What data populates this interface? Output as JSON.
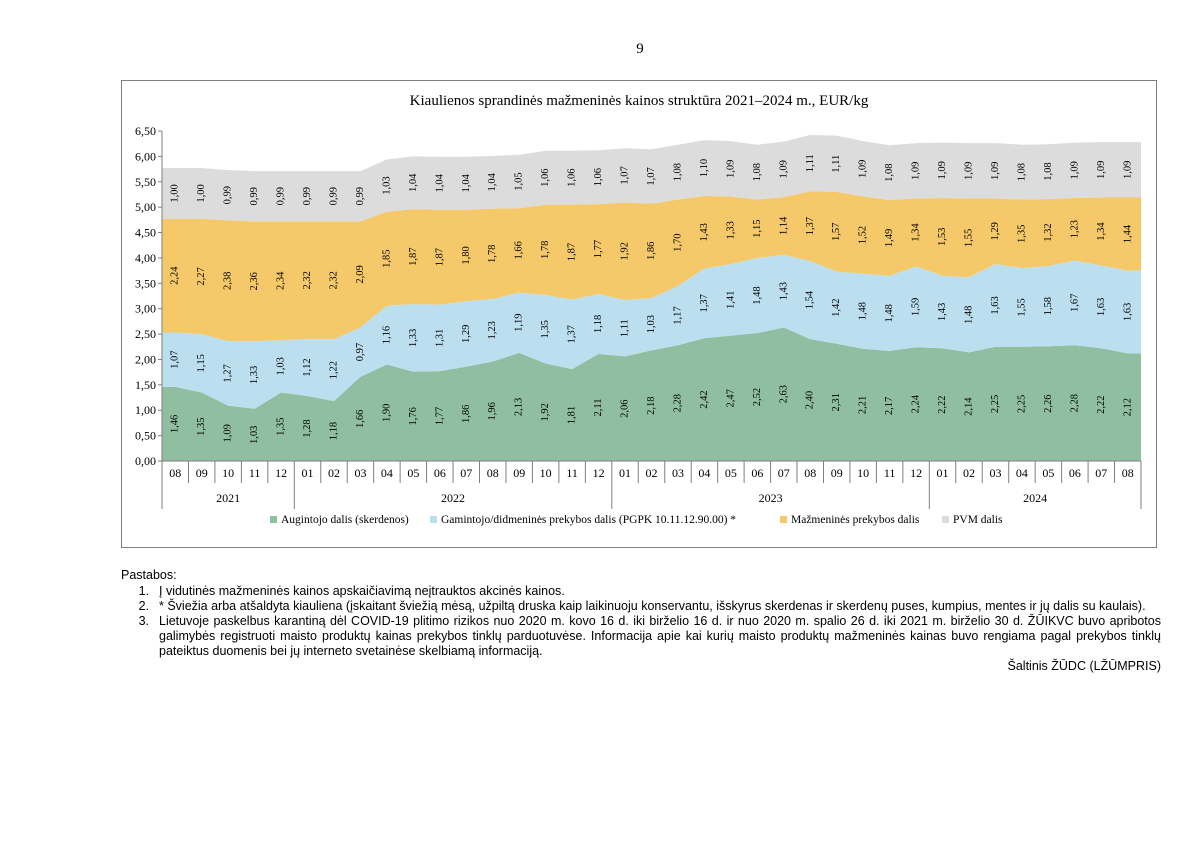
{
  "page_number": "9",
  "chart_data": {
    "type": "area",
    "title": "Kiaulienos sprandinės mažmeninės kainos struktūra 2021–2024 m., EUR/kg",
    "ylim": [
      0,
      6.5
    ],
    "y_ticks": [
      "0,00",
      "0,50",
      "1,00",
      "1,50",
      "2,00",
      "2,50",
      "3,00",
      "3,50",
      "4,00",
      "4,50",
      "5,00",
      "5,50",
      "6,00",
      "6,50"
    ],
    "grid": false,
    "legend_position": "bottom",
    "stacked": true,
    "categories": [
      "08",
      "09",
      "10",
      "11",
      "12",
      "01",
      "02",
      "03",
      "04",
      "05",
      "06",
      "07",
      "08",
      "09",
      "10",
      "11",
      "12",
      "01",
      "02",
      "03",
      "04",
      "05",
      "06",
      "07",
      "08",
      "09",
      "10",
      "11",
      "12",
      "01",
      "02",
      "03",
      "04",
      "05",
      "06",
      "07",
      "08"
    ],
    "years": [
      {
        "label": "2021",
        "count": 5
      },
      {
        "label": "2022",
        "count": 12
      },
      {
        "label": "2023",
        "count": 12
      },
      {
        "label": "2024",
        "count": 8
      }
    ],
    "series": [
      {
        "name": "Augintojo dalis (skerdenos)",
        "color": "#8fbfa0",
        "values": [
          1.46,
          1.35,
          1.09,
          1.03,
          1.35,
          1.28,
          1.18,
          1.66,
          1.9,
          1.76,
          1.77,
          1.86,
          1.96,
          2.13,
          1.92,
          1.81,
          2.11,
          2.06,
          2.18,
          2.28,
          2.42,
          2.47,
          2.52,
          2.63,
          2.4,
          2.31,
          2.21,
          2.17,
          2.24,
          2.22,
          2.14,
          2.25,
          2.25,
          2.26,
          2.28,
          2.22,
          2.12
        ],
        "labels": [
          "1,46",
          "1,35",
          "1,09",
          "1,03",
          "1,35",
          "1,28",
          "1,18",
          "1,66",
          "1,90",
          "1,76",
          "1,77",
          "1,86",
          "1,96",
          "2,13",
          "1,92",
          "1,81",
          "2,11",
          "2,06",
          "2,18",
          "2,28",
          "2,42",
          "2,47",
          "2,52",
          "2,63",
          "2,40",
          "2,31",
          "2,21",
          "2,17",
          "2,24",
          "2,22",
          "2,14",
          "2,25",
          "2,25",
          "2,26",
          "2,28",
          "2,22",
          "2,12"
        ]
      },
      {
        "name": "Gamintojo/didmeninės prekybos dalis (PGPK 10.11.12.90.00) *",
        "color": "#bcdff0",
        "values": [
          1.07,
          1.15,
          1.27,
          1.33,
          1.03,
          1.12,
          1.22,
          0.97,
          1.16,
          1.33,
          1.31,
          1.29,
          1.23,
          1.19,
          1.35,
          1.37,
          1.18,
          1.11,
          1.03,
          1.17,
          1.37,
          1.41,
          1.48,
          1.43,
          1.54,
          1.42,
          1.48,
          1.48,
          1.59,
          1.43,
          1.48,
          1.63,
          1.55,
          1.58,
          1.67,
          1.63,
          1.63
        ],
        "labels": [
          "1,07",
          "1,15",
          "1,27",
          "1,33",
          "1,03",
          "1,12",
          "1,22",
          "0,97",
          "1,16",
          "1,33",
          "1,31",
          "1,29",
          "1,23",
          "1,19",
          "1,35",
          "1,37",
          "1,18",
          "1,11",
          "1,03",
          "1,17",
          "1,37",
          "1,41",
          "1,48",
          "1,43",
          "1,54",
          "1,42",
          "1,48",
          "1,48",
          "1,59",
          "1,43",
          "1,48",
          "1,63",
          "1,55",
          "1,58",
          "1,67",
          "1,63",
          "1,63"
        ]
      },
      {
        "name": "Mažmeninės prekybos dalis",
        "color": "#f5c96a",
        "values": [
          2.24,
          2.27,
          2.38,
          2.36,
          2.34,
          2.32,
          2.32,
          2.09,
          1.85,
          1.87,
          1.87,
          1.8,
          1.78,
          1.66,
          1.78,
          1.87,
          1.77,
          1.92,
          1.86,
          1.7,
          1.43,
          1.33,
          1.15,
          1.14,
          1.37,
          1.57,
          1.52,
          1.49,
          1.34,
          1.53,
          1.55,
          1.29,
          1.35,
          1.32,
          1.23,
          1.34,
          1.44
        ],
        "labels": [
          "2,24",
          "2,27",
          "2,38",
          "2,36",
          "2,34",
          "2,32",
          "2,32",
          "2,09",
          "1,85",
          "1,87",
          "1,87",
          "1,80",
          "1,78",
          "1,66",
          "1,78",
          "1,87",
          "1,77",
          "1,92",
          "1,86",
          "1,70",
          "1,43",
          "1,33",
          "1,15",
          "1,14",
          "1,37",
          "1,57",
          "1,52",
          "1,49",
          "1,34",
          "1,53",
          "1,55",
          "1,29",
          "1,35",
          "1,32",
          "1,23",
          "1,34",
          "1,44"
        ]
      },
      {
        "name": "PVM dalis",
        "color": "#dcdcdc",
        "values": [
          1.0,
          1.0,
          0.99,
          0.99,
          0.99,
          0.99,
          0.99,
          0.99,
          1.03,
          1.04,
          1.04,
          1.04,
          1.04,
          1.05,
          1.06,
          1.06,
          1.06,
          1.07,
          1.07,
          1.08,
          1.1,
          1.09,
          1.08,
          1.09,
          1.11,
          1.11,
          1.09,
          1.08,
          1.09,
          1.09,
          1.09,
          1.09,
          1.08,
          1.08,
          1.09,
          1.09,
          1.09
        ],
        "labels": [
          "1,00",
          "1,00",
          "0,99",
          "0,99",
          "0,99",
          "0,99",
          "0,99",
          "0,99",
          "1,03",
          "1,04",
          "1,04",
          "1,04",
          "1,04",
          "1,05",
          "1,06",
          "1,06",
          "1,06",
          "1,07",
          "1,07",
          "1,08",
          "1,10",
          "1,09",
          "1,08",
          "1,09",
          "1,11",
          "1,11",
          "1,09",
          "1,08",
          "1,09",
          "1,09",
          "1,09",
          "1,09",
          "1,08",
          "1,08",
          "1,09",
          "1,09",
          "1,09"
        ]
      }
    ]
  },
  "notes": {
    "title": "Pastabos:",
    "items": [
      {
        "num": "1.",
        "text": "Į vidutinės mažmeninės kainos apskaičiavimą neįtrauktos akcinės kainos."
      },
      {
        "num": "2.",
        "text": "* Šviežia arba atšaldyta kiauliena (įskaitant šviežią mėsą, užpiltą druska kaip laikinuoju konservantu, išskyrus skerdenas ir skerdenų puses, kumpius, mentes ir jų dalis su kaulais)."
      },
      {
        "num": "3.",
        "text": "Lietuvoje paskelbus karantiną dėl COVID-19 plitimo rizikos nuo 2020 m. kovo 16 d. iki birželio 16 d. ir nuo 2020 m. spalio 26 d. iki 2021 m. birželio 30 d. ŽŪIKVC buvo apribotos galimybės registruoti maisto produktų kainas prekybos tinklų parduotuvėse. Informacija apie kai kurių maisto produktų mažmeninės kainas buvo rengiama pagal prekybos tinklų pateiktus duomenis bei jų interneto svetainėse skelbiamą informaciją."
      }
    ],
    "source": "Šaltinis ŽŪDC (LŽŪMPRIS)"
  }
}
